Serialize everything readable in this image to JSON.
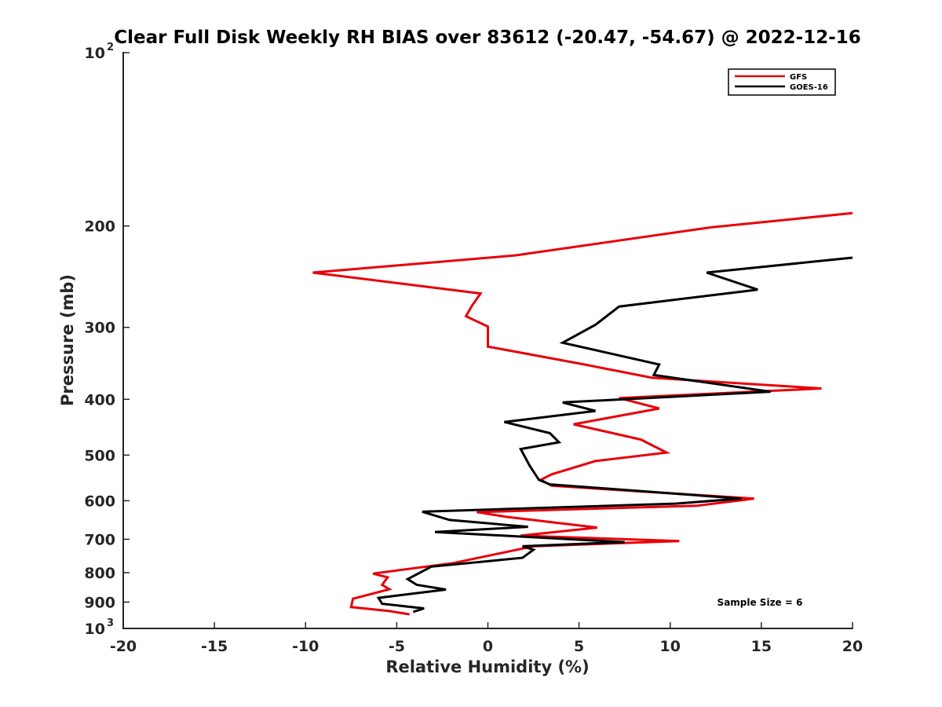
{
  "chart_data": {
    "type": "line",
    "title": "Clear Full Disk Weekly RH BIAS over 83612 (-20.47, -54.67) @ 2022-12-16",
    "xlabel": "Relative Humidity (%)",
    "ylabel": "Pressure (mb)",
    "xlim": [
      -20,
      20
    ],
    "ylim": [
      100,
      1000
    ],
    "yscale": "log",
    "y_reversed": true,
    "x_ticks": [
      -20,
      -15,
      -10,
      -5,
      0,
      5,
      10,
      15,
      20
    ],
    "x_tick_labels": [
      "-20",
      "-15",
      "-10",
      "-5",
      "0",
      "5",
      "10",
      "15",
      "20"
    ],
    "y_ticks": [
      200,
      300,
      400,
      500,
      600,
      700,
      800,
      900
    ],
    "y_tick_labels": [
      "200",
      "300",
      "400",
      "500",
      "600",
      "700",
      "800",
      "900"
    ],
    "y_decade_ticks": [
      {
        "value": 100,
        "base": "10",
        "exp": "2"
      },
      {
        "value": 1000,
        "base": "10",
        "exp": "3"
      }
    ],
    "legend": {
      "placement": "top-right"
    },
    "annotation": "Sample Size = 6",
    "series": [
      {
        "name": "GFS",
        "color": "#e8000b",
        "points": [
          [
            20.0,
            190
          ],
          [
            12.3,
            201
          ],
          [
            1.5,
            225
          ],
          [
            -9.6,
            241
          ],
          [
            -0.4,
            262
          ],
          [
            -0.9,
            276
          ],
          [
            -1.2,
            287
          ],
          [
            0.0,
            299
          ],
          [
            0.0,
            324
          ],
          [
            5.3,
            348
          ],
          [
            9.0,
            367
          ],
          [
            18.3,
            383
          ],
          [
            7.2,
            398
          ],
          [
            9.4,
            415
          ],
          [
            4.7,
            442
          ],
          [
            8.4,
            470
          ],
          [
            9.8,
            495
          ],
          [
            5.9,
            512
          ],
          [
            3.5,
            540
          ],
          [
            2.9,
            552
          ],
          [
            3.5,
            565
          ],
          [
            14.6,
            595
          ],
          [
            11.5,
            612
          ],
          [
            -0.6,
            628
          ],
          [
            1.0,
            640
          ],
          [
            6.0,
            668
          ],
          [
            1.8,
            690
          ],
          [
            10.5,
            705
          ],
          [
            2.5,
            720
          ],
          [
            -1.9,
            770
          ],
          [
            -6.3,
            803
          ],
          [
            -5.5,
            815
          ],
          [
            -5.8,
            840
          ],
          [
            -5.4,
            855
          ],
          [
            -7.4,
            888
          ],
          [
            -7.5,
            918
          ],
          [
            -5.4,
            933
          ],
          [
            -4.3,
            945
          ]
        ]
      },
      {
        "name": "GOES-16",
        "color": "#000000",
        "points": [
          [
            20.0,
            227
          ],
          [
            12.0,
            241
          ],
          [
            14.8,
            258
          ],
          [
            7.2,
            276
          ],
          [
            5.9,
            297
          ],
          [
            4.1,
            319
          ],
          [
            9.4,
            348
          ],
          [
            9.1,
            363
          ],
          [
            15.5,
            388
          ],
          [
            4.1,
            405
          ],
          [
            5.9,
            419
          ],
          [
            0.9,
            438
          ],
          [
            3.4,
            458
          ],
          [
            3.9,
            475
          ],
          [
            1.8,
            488
          ],
          [
            2.3,
            522
          ],
          [
            2.8,
            552
          ],
          [
            3.4,
            562
          ],
          [
            13.9,
            595
          ],
          [
            10.3,
            607
          ],
          [
            -3.6,
            627
          ],
          [
            -2.1,
            648
          ],
          [
            2.2,
            666
          ],
          [
            -2.9,
            680
          ],
          [
            7.5,
            708
          ],
          [
            1.9,
            720
          ],
          [
            2.5,
            730
          ],
          [
            1.9,
            754
          ],
          [
            -3.1,
            781
          ],
          [
            -4.4,
            821
          ],
          [
            -3.9,
            840
          ],
          [
            -2.3,
            856
          ],
          [
            -6.0,
            885
          ],
          [
            -5.8,
            906
          ],
          [
            -3.5,
            923
          ],
          [
            -4.1,
            936
          ]
        ]
      }
    ]
  }
}
